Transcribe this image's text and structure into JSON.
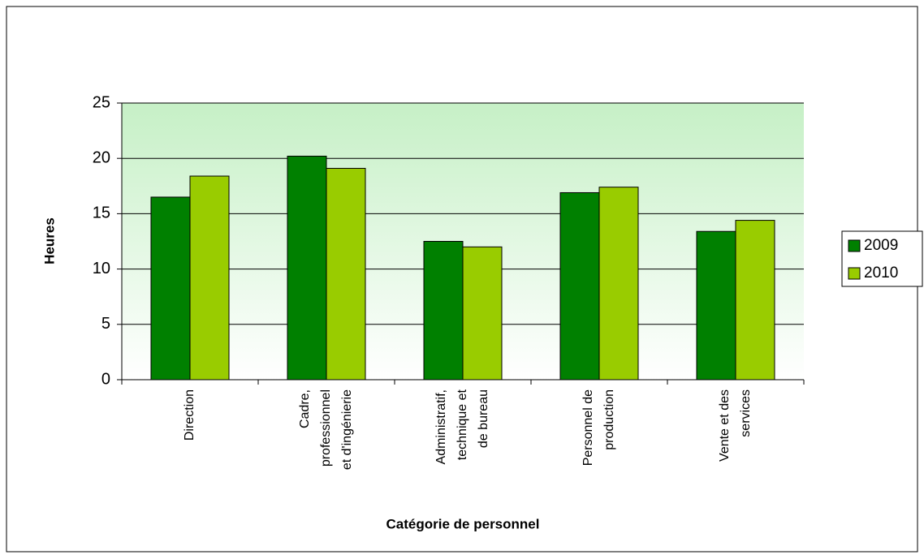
{
  "chart_data": {
    "type": "bar",
    "x_label": "Catégorie de personnel",
    "y_label": "Heures",
    "categories": [
      [
        "Direction"
      ],
      [
        "Cadre,",
        "professionnel",
        "et d'ingénierie"
      ],
      [
        "Administratif,",
        "technique et",
        "de bureau"
      ],
      [
        "Personnel de",
        "production"
      ],
      [
        "Vente et des",
        "services"
      ]
    ],
    "series": [
      {
        "name": "2009",
        "color": "#008000",
        "values": [
          16.5,
          20.2,
          12.5,
          16.9,
          13.4
        ]
      },
      {
        "name": "2010",
        "color": "#99cc00",
        "values": [
          18.4,
          19.1,
          12.0,
          17.4,
          14.4
        ]
      }
    ],
    "ylim": [
      0,
      25
    ],
    "yticks": [
      0,
      5,
      10,
      15,
      20,
      25
    ],
    "grid": true,
    "legend": "right"
  }
}
